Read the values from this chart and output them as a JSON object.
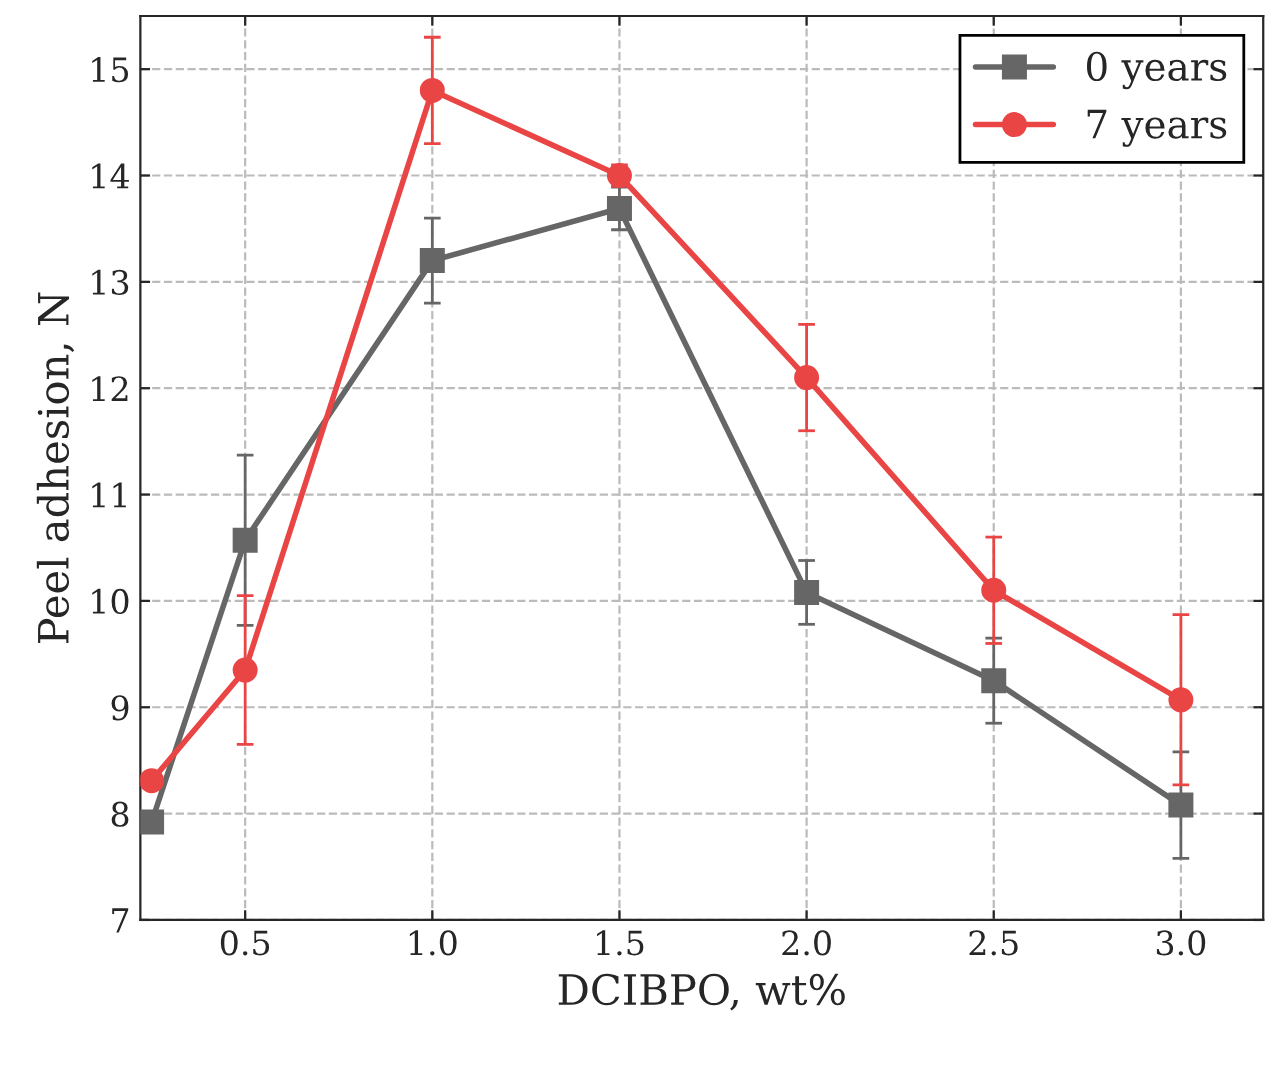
{
  "chart_data": {
    "type": "line",
    "xlabel": "DCIBPO, wt%",
    "ylabel": "Peel adhesion, N",
    "x": [
      0.25,
      0.5,
      1.0,
      1.5,
      2.0,
      2.5,
      3.0
    ],
    "xlim": [
      0.22,
      3.22
    ],
    "xticks": [
      {
        "value": 0.5,
        "label": "0.5"
      },
      {
        "value": 1.0,
        "label": "1.0"
      },
      {
        "value": 1.5,
        "label": "1.5"
      },
      {
        "value": 2.0,
        "label": "2.0"
      },
      {
        "value": 2.5,
        "label": "2.5"
      },
      {
        "value": 3.0,
        "label": "3.0"
      }
    ],
    "ylim": [
      7,
      15.5
    ],
    "yticks": [
      7,
      8,
      9,
      10,
      11,
      12,
      13,
      14,
      15
    ],
    "grid": true,
    "legend": "top right",
    "line_style": "solid",
    "series": [
      {
        "name": "0 years",
        "color": "#666666",
        "marker": "square",
        "values": [
          7.92,
          10.57,
          13.2,
          13.69,
          10.08,
          9.25,
          8.08
        ],
        "errors": [
          null,
          0.8,
          0.4,
          0.2,
          0.3,
          0.4,
          0.5
        ]
      },
      {
        "name": "7 years",
        "color": "#ea4545",
        "marker": "circle",
        "values": [
          8.31,
          9.35,
          14.8,
          14.0,
          12.1,
          10.1,
          9.07
        ],
        "errors": [
          null,
          0.7,
          0.5,
          0.1,
          0.5,
          0.5,
          0.8
        ]
      }
    ]
  }
}
